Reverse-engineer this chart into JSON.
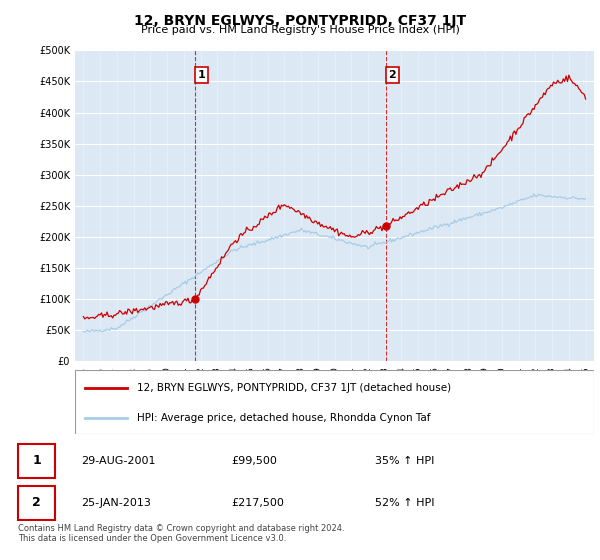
{
  "title": "12, BRYN EGLWYS, PONTYPRIDD, CF37 1JT",
  "subtitle": "Price paid vs. HM Land Registry's House Price Index (HPI)",
  "ylabel_ticks": [
    "£0",
    "£50K",
    "£100K",
    "£150K",
    "£200K",
    "£250K",
    "£300K",
    "£350K",
    "£400K",
    "£450K",
    "£500K"
  ],
  "ytick_values": [
    0,
    50000,
    100000,
    150000,
    200000,
    250000,
    300000,
    350000,
    400000,
    450000,
    500000
  ],
  "ylim": [
    0,
    500000
  ],
  "purchase1": {
    "date_num": 2001.66,
    "price": 99500,
    "label": "1"
  },
  "purchase2": {
    "date_num": 2013.07,
    "price": 217500,
    "label": "2"
  },
  "vline1_x": 2001.66,
  "vline2_x": 2013.07,
  "hpi_color": "#a8cce8",
  "price_color": "#cc0000",
  "vline_color": "#cc0000",
  "background_color": "#dce9f5",
  "legend_label_red": "12, BRYN EGLWYS, PONTYPRIDD, CF37 1JT (detached house)",
  "legend_label_blue": "HPI: Average price, detached house, Rhondda Cynon Taf",
  "table_rows": [
    [
      "1",
      "29-AUG-2001",
      "£99,500",
      "35% ↑ HPI"
    ],
    [
      "2",
      "25-JAN-2013",
      "£217,500",
      "52% ↑ HPI"
    ]
  ],
  "footer": "Contains HM Land Registry data © Crown copyright and database right 2024.\nThis data is licensed under the Open Government Licence v3.0.",
  "xlim_left": 1994.5,
  "xlim_right": 2025.5,
  "xtick_years": [
    1995,
    1996,
    1997,
    1998,
    1999,
    2000,
    2001,
    2002,
    2003,
    2004,
    2005,
    2006,
    2007,
    2008,
    2009,
    2010,
    2011,
    2012,
    2013,
    2014,
    2015,
    2016,
    2017,
    2018,
    2019,
    2020,
    2021,
    2022,
    2023,
    2024,
    2025
  ]
}
